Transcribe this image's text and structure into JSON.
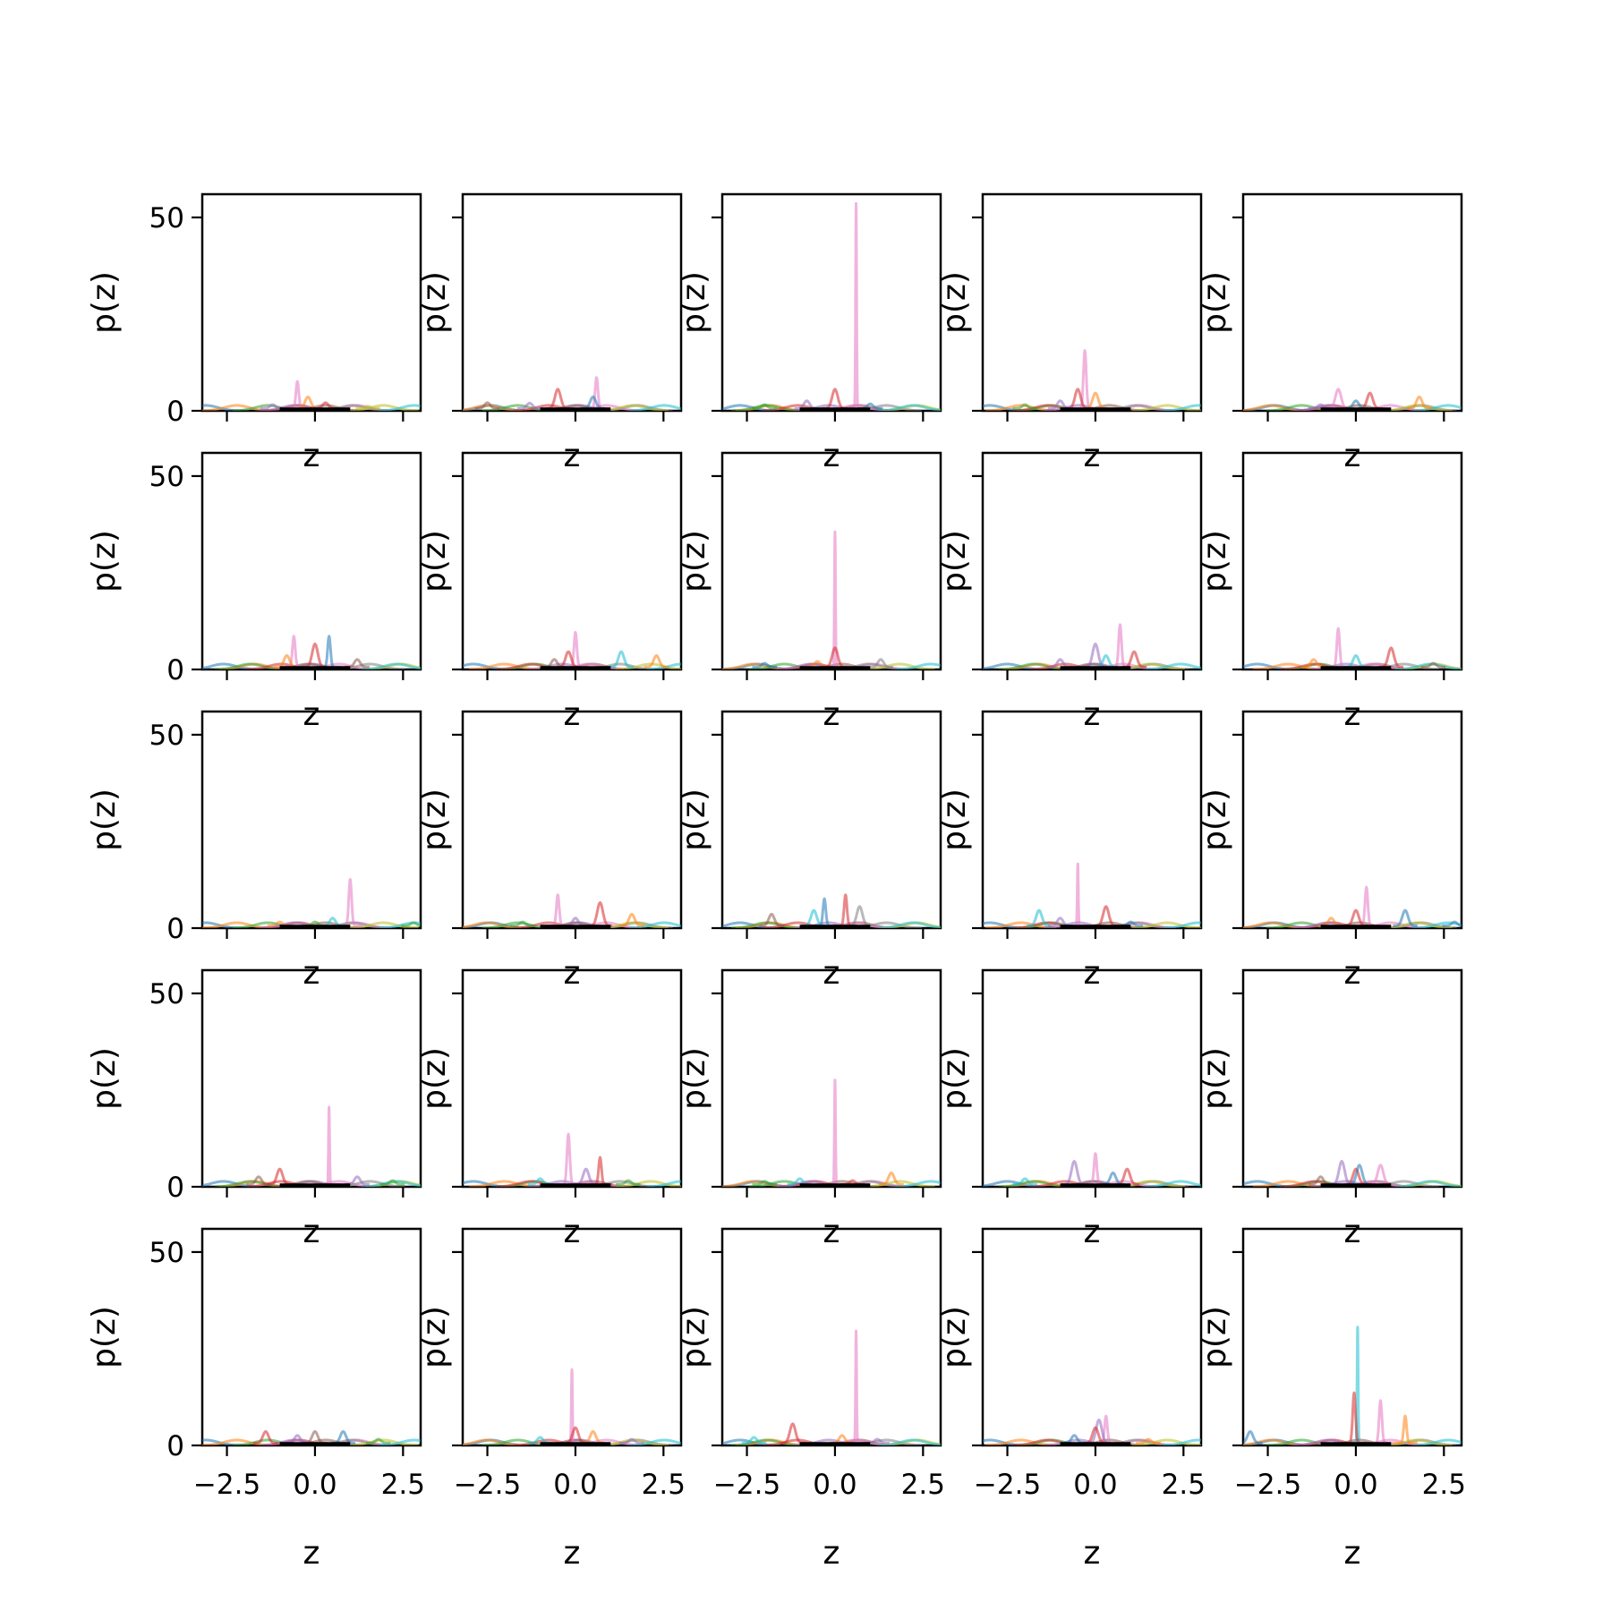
{
  "chart_data": {
    "type": "line",
    "layout": {
      "rows": 5,
      "cols": 5
    },
    "xlabel": "z",
    "ylabel": "p(z)",
    "xlim": [
      -3.2,
      3.0
    ],
    "ylim": [
      0,
      56
    ],
    "xticks": [
      -2.5,
      0.0,
      2.5
    ],
    "xtick_labels": [
      "−2.5",
      "0.0",
      "2.5"
    ],
    "yticks": [
      0,
      50
    ],
    "ytick_labels": [
      "0",
      "50"
    ],
    "palette": [
      "#1f77b4",
      "#ff7f0e",
      "#2ca02c",
      "#d62728",
      "#9467bd",
      "#8c564b",
      "#e377c2",
      "#7f7f7f",
      "#bcbd22",
      "#17becf"
    ],
    "baseline_color": "#000000",
    "baseline_range": [
      -1.0,
      1.0
    ],
    "panels": [
      {
        "peaks": [
          [
            -0.5,
            7,
            6
          ],
          [
            -0.2,
            3,
            1
          ],
          [
            0.3,
            1.5,
            3
          ],
          [
            -1.2,
            1,
            4
          ],
          [
            1.5,
            0.6,
            8
          ]
        ]
      },
      {
        "peaks": [
          [
            0.6,
            8,
            6
          ],
          [
            -0.5,
            5,
            3
          ],
          [
            0.5,
            3,
            0
          ],
          [
            -1.3,
            1.4,
            4
          ],
          [
            -2.5,
            1.5,
            5
          ]
        ]
      },
      {
        "peaks": [
          [
            0.6,
            53,
            6
          ],
          [
            0.0,
            5,
            3
          ],
          [
            -0.8,
            2,
            4
          ],
          [
            -2.0,
            1,
            2
          ],
          [
            1.0,
            1.2,
            0
          ]
        ]
      },
      {
        "peaks": [
          [
            -0.3,
            15,
            6
          ],
          [
            -0.5,
            5,
            3
          ],
          [
            0.0,
            4,
            1
          ],
          [
            -1.0,
            2,
            4
          ],
          [
            -2.0,
            1,
            2
          ]
        ]
      },
      {
        "peaks": [
          [
            -0.5,
            5,
            6
          ],
          [
            0.4,
            4,
            3
          ],
          [
            1.8,
            3,
            1
          ],
          [
            0.0,
            2,
            0
          ],
          [
            -1.0,
            1,
            4
          ]
        ]
      },
      {
        "peaks": [
          [
            -0.6,
            8,
            6
          ],
          [
            0.4,
            8,
            0
          ],
          [
            0.0,
            6,
            3
          ],
          [
            -0.8,
            3,
            1
          ],
          [
            1.2,
            2,
            5
          ]
        ]
      },
      {
        "peaks": [
          [
            0.0,
            9,
            6
          ],
          [
            -0.2,
            4,
            3
          ],
          [
            1.3,
            4,
            9
          ],
          [
            2.3,
            3,
            1
          ],
          [
            -0.6,
            2,
            5
          ]
        ]
      },
      {
        "peaks": [
          [
            0.0,
            35,
            6
          ],
          [
            0.0,
            5,
            3
          ],
          [
            1.3,
            2,
            7
          ],
          [
            -0.5,
            1.5,
            1
          ],
          [
            -2.0,
            1,
            0
          ]
        ]
      },
      {
        "peaks": [
          [
            0.7,
            11,
            6
          ],
          [
            1.1,
            4,
            3
          ],
          [
            0.0,
            6,
            4
          ],
          [
            0.3,
            3,
            9
          ],
          [
            -1.0,
            2,
            4
          ]
        ]
      },
      {
        "peaks": [
          [
            -0.5,
            10,
            6
          ],
          [
            1.0,
            5,
            3
          ],
          [
            0.0,
            3,
            9
          ],
          [
            -1.2,
            2,
            1
          ],
          [
            2.2,
            1,
            5
          ]
        ]
      },
      {
        "peaks": [
          [
            1.0,
            12,
            6
          ],
          [
            0.5,
            2,
            9
          ],
          [
            0.0,
            1,
            2
          ],
          [
            -1.0,
            1,
            1
          ],
          [
            2.8,
            0.8,
            2
          ]
        ]
      },
      {
        "peaks": [
          [
            -0.5,
            8,
            6
          ],
          [
            0.7,
            6,
            3
          ],
          [
            1.6,
            3,
            1
          ],
          [
            0.0,
            2,
            4
          ],
          [
            -1.5,
            1,
            2
          ]
        ]
      },
      {
        "peaks": [
          [
            -0.3,
            7,
            0
          ],
          [
            0.3,
            8,
            3
          ],
          [
            0.7,
            5,
            7
          ],
          [
            -1.8,
            3,
            5
          ],
          [
            -0.6,
            4,
            9
          ]
        ]
      },
      {
        "peaks": [
          [
            -0.5,
            16,
            6
          ],
          [
            0.3,
            5,
            3
          ],
          [
            -1.6,
            4,
            9
          ],
          [
            -1.0,
            2,
            4
          ],
          [
            1.0,
            1,
            0
          ]
        ]
      },
      {
        "peaks": [
          [
            0.3,
            10,
            6
          ],
          [
            0.0,
            4,
            3
          ],
          [
            1.4,
            4,
            0
          ],
          [
            -0.7,
            2,
            1
          ],
          [
            2.8,
            1,
            0
          ]
        ]
      },
      {
        "peaks": [
          [
            0.4,
            20,
            6
          ],
          [
            -1.0,
            4,
            3
          ],
          [
            -1.6,
            2,
            5
          ],
          [
            1.2,
            2,
            4
          ],
          [
            2.2,
            1,
            2
          ]
        ]
      },
      {
        "peaks": [
          [
            -0.2,
            13,
            6
          ],
          [
            0.7,
            7,
            3
          ],
          [
            0.3,
            4,
            4
          ],
          [
            -1.0,
            1.5,
            9
          ],
          [
            1.5,
            1,
            2
          ]
        ]
      },
      {
        "peaks": [
          [
            0.0,
            27,
            6
          ],
          [
            1.6,
            3,
            1
          ],
          [
            -1.0,
            1.5,
            9
          ],
          [
            0.5,
            1,
            3
          ],
          [
            -2.0,
            0.8,
            2
          ]
        ]
      },
      {
        "peaks": [
          [
            0.0,
            8,
            6
          ],
          [
            -0.6,
            6,
            4
          ],
          [
            0.9,
            4,
            3
          ],
          [
            0.5,
            3,
            0
          ],
          [
            -2.0,
            1.5,
            9
          ]
        ]
      },
      {
        "peaks": [
          [
            0.7,
            5,
            6
          ],
          [
            0.0,
            4,
            3
          ],
          [
            -0.4,
            6,
            4
          ],
          [
            0.1,
            5,
            0
          ],
          [
            -1.0,
            2,
            5
          ]
        ]
      },
      {
        "peaks": [
          [
            -1.4,
            3,
            3
          ],
          [
            0.0,
            3,
            5
          ],
          [
            0.8,
            3,
            0
          ],
          [
            -0.5,
            2,
            4
          ],
          [
            1.8,
            1,
            2
          ]
        ]
      },
      {
        "peaks": [
          [
            -0.1,
            19,
            6
          ],
          [
            0.0,
            4,
            3
          ],
          [
            0.5,
            3,
            1
          ],
          [
            -1.0,
            1.5,
            9
          ],
          [
            1.6,
            1,
            4
          ]
        ]
      },
      {
        "peaks": [
          [
            0.6,
            29,
            6
          ],
          [
            -1.2,
            5,
            3
          ],
          [
            0.2,
            2,
            1
          ],
          [
            -2.3,
            1.5,
            9
          ],
          [
            1.2,
            1,
            4
          ]
        ]
      },
      {
        "peaks": [
          [
            0.3,
            7,
            6
          ],
          [
            0.1,
            6,
            4
          ],
          [
            0.0,
            4,
            3
          ],
          [
            -0.6,
            2,
            0
          ],
          [
            1.5,
            1,
            1
          ]
        ]
      },
      {
        "peaks": [
          [
            0.05,
            30,
            9
          ],
          [
            0.7,
            11,
            6
          ],
          [
            1.4,
            7,
            1
          ],
          [
            -0.05,
            13,
            3
          ],
          [
            -3.0,
            3,
            0
          ]
        ]
      }
    ]
  }
}
